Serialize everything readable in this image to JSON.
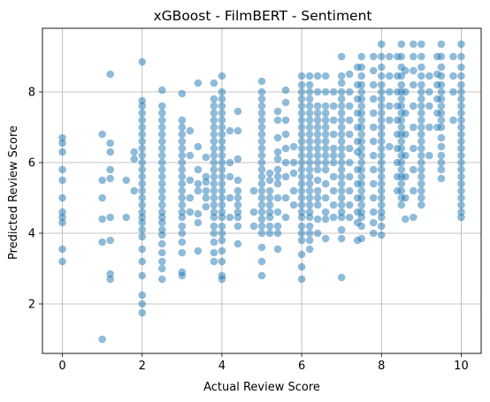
{
  "chart_data": {
    "type": "scatter",
    "title": "xGBoost - FilmBERT - Sentiment",
    "xlabel": "Actual Review Score",
    "ylabel": "Predicted Review Score",
    "xlim": [
      -0.5,
      10.5
    ],
    "ylim": [
      0.6,
      9.8
    ],
    "xticks": [
      "0",
      "2",
      "4",
      "6",
      "8",
      "10"
    ],
    "yticks": [
      "2",
      "4",
      "6",
      "8"
    ],
    "grid": true,
    "point_color": "#1f77b4",
    "point_alpha": 0.5,
    "columns": [
      {
        "x": 0,
        "ys": [
          3.2,
          3.55,
          4.3,
          4.45,
          4.6,
          5.0,
          5.5,
          5.8,
          6.3,
          6.55,
          6.7
        ]
      },
      {
        "x": 1.0,
        "ys": [
          1.0,
          3.75,
          4.4,
          5.0,
          5.5,
          6.8
        ]
      },
      {
        "x": 1.2,
        "ys": [
          2.7,
          2.85,
          3.8,
          4.45,
          5.55,
          5.8,
          6.3,
          6.55,
          8.5
        ]
      },
      {
        "x": 1.6,
        "ys": [
          4.45,
          5.5
        ]
      },
      {
        "x": 1.8,
        "ys": [
          5.2,
          6.1,
          6.3
        ]
      },
      {
        "x": 2.0,
        "ys": [
          1.75,
          2.0,
          2.25,
          2.8,
          3.2,
          3.55,
          3.9,
          4.1,
          4.3,
          4.45,
          4.6,
          4.8,
          5.0,
          5.2,
          5.4,
          5.6,
          5.8,
          6.0,
          6.2,
          6.4,
          6.6,
          6.8,
          7.0,
          7.2,
          7.4,
          7.6,
          7.75,
          8.85
        ]
      },
      {
        "x": 2.5,
        "ys": [
          2.7,
          3.0,
          3.2,
          3.45,
          3.7,
          3.95,
          4.1,
          4.3,
          4.45,
          4.6,
          4.8,
          5.0,
          5.2,
          5.4,
          5.6,
          5.8,
          6.0,
          6.2,
          6.4,
          6.6,
          6.8,
          7.0,
          7.2,
          7.4,
          7.6,
          8.05
        ]
      },
      {
        "x": 3.0,
        "ys": [
          2.8,
          2.9,
          3.45,
          3.75,
          4.0,
          4.2,
          4.45,
          4.6,
          4.8,
          5.0,
          5.2,
          5.4,
          5.6,
          5.8,
          6.0,
          6.2,
          6.4,
          6.6,
          6.8,
          7.0,
          7.2,
          7.95
        ]
      },
      {
        "x": 3.2,
        "ys": [
          4.6,
          5.0,
          5.5,
          6.2,
          6.9
        ]
      },
      {
        "x": 3.4,
        "ys": [
          3.5,
          4.3,
          4.55,
          5.2,
          5.4,
          5.8,
          6.45,
          8.25
        ]
      },
      {
        "x": 3.6,
        "ys": [
          4.75,
          5.0,
          5.2,
          5.45,
          5.6,
          6.15
        ]
      },
      {
        "x": 3.8,
        "ys": [
          3.2,
          3.45,
          3.75,
          4.0,
          4.2,
          4.45,
          4.6,
          4.8,
          5.0,
          5.2,
          5.4,
          5.6,
          5.8,
          6.0,
          6.2,
          6.4,
          6.6,
          6.8,
          7.0,
          7.2,
          7.4,
          7.6,
          7.8,
          8.25
        ]
      },
      {
        "x": 4.0,
        "ys": [
          2.7,
          2.8,
          3.2,
          3.5,
          3.8,
          4.0,
          4.2,
          4.45,
          4.6,
          4.8,
          5.0,
          5.2,
          5.4,
          5.6,
          5.8,
          6.0,
          6.2,
          6.4,
          6.6,
          6.8,
          7.0,
          7.2,
          7.4,
          7.6,
          7.8,
          8.0,
          8.45
        ]
      },
      {
        "x": 4.2,
        "ys": [
          4.45,
          5.0,
          5.6,
          6.0,
          6.9
        ]
      },
      {
        "x": 4.4,
        "ys": [
          3.7,
          4.2,
          4.45,
          4.6,
          4.8,
          5.0,
          5.2,
          5.5,
          6.1,
          6.9,
          7.45
        ]
      },
      {
        "x": 4.8,
        "ys": [
          4.2,
          4.6,
          5.2
        ]
      },
      {
        "x": 5.0,
        "ys": [
          2.8,
          3.2,
          3.6,
          4.0,
          4.2,
          4.4,
          4.6,
          4.8,
          5.0,
          5.2,
          5.4,
          5.6,
          5.8,
          6.0,
          6.2,
          6.4,
          6.6,
          6.8,
          7.0,
          7.2,
          7.4,
          7.6,
          7.8,
          8.0,
          8.3
        ]
      },
      {
        "x": 5.2,
        "ys": [
          4.0,
          4.2,
          4.45,
          4.6,
          4.8,
          5.0,
          5.2,
          5.5,
          5.7
        ]
      },
      {
        "x": 5.4,
        "ys": [
          3.55,
          4.0,
          4.2,
          4.6,
          5.0,
          5.4,
          5.6,
          5.8,
          6.1,
          6.3,
          6.7,
          7.2,
          7.45
        ]
      },
      {
        "x": 5.6,
        "ys": [
          4.45,
          5.0,
          5.6,
          6.0,
          6.4,
          6.8,
          7.2,
          7.7,
          8.05
        ]
      },
      {
        "x": 5.8,
        "ys": [
          4.8,
          5.2,
          5.7,
          6.0,
          6.45
        ]
      },
      {
        "x": 6.0,
        "ys": [
          2.7,
          3.05,
          3.4,
          3.8,
          4.0,
          4.2,
          4.45,
          4.6,
          4.8,
          5.0,
          5.2,
          5.4,
          5.6,
          5.8,
          6.0,
          6.2,
          6.4,
          6.6,
          6.8,
          7.0,
          7.2,
          7.4,
          7.6,
          7.8,
          8.0,
          8.2,
          8.45
        ]
      },
      {
        "x": 6.2,
        "ys": [
          3.55,
          3.8,
          4.0,
          4.2,
          4.45,
          4.6,
          4.8,
          5.0,
          5.2,
          5.4,
          5.6,
          5.8,
          6.0,
          6.2,
          6.4,
          6.6,
          6.8,
          7.0,
          7.2,
          7.4,
          7.6,
          7.8,
          8.0,
          8.2,
          8.45
        ]
      },
      {
        "x": 6.4,
        "ys": [
          4.0,
          4.4,
          4.8,
          5.0,
          5.2,
          5.5,
          5.8,
          6.0,
          6.2,
          6.4,
          6.6,
          6.8,
          7.0,
          7.2,
          7.4,
          7.6,
          8.0,
          8.45
        ]
      },
      {
        "x": 6.6,
        "ys": [
          3.85,
          4.4,
          4.6,
          5.0,
          5.4,
          5.8,
          6.0,
          6.2,
          6.4,
          6.6,
          6.8,
          7.0,
          7.2,
          7.4,
          7.6,
          8.0,
          8.45
        ]
      },
      {
        "x": 6.8,
        "ys": [
          4.45,
          4.8,
          5.2,
          5.6,
          6.0,
          6.2,
          6.4,
          6.8,
          7.2,
          7.6,
          8.0
        ]
      },
      {
        "x": 7.0,
        "ys": [
          2.75,
          3.85,
          4.1,
          4.45,
          4.6,
          4.8,
          5.0,
          5.2,
          5.4,
          5.6,
          5.8,
          6.0,
          6.2,
          6.4,
          6.6,
          6.8,
          7.0,
          7.2,
          7.4,
          7.6,
          7.8,
          8.0,
          8.25,
          8.45,
          9.0
        ]
      },
      {
        "x": 7.2,
        "ys": [
          4.45,
          4.8,
          5.2,
          5.6,
          6.0,
          6.4,
          6.8,
          7.2,
          7.6,
          8.0,
          8.5
        ]
      },
      {
        "x": 7.4,
        "ys": [
          3.8,
          4.3,
          4.6,
          5.0,
          5.4,
          5.8,
          6.3,
          6.6,
          7.0,
          7.4,
          7.8,
          8.2,
          8.7
        ]
      },
      {
        "x": 7.5,
        "ys": [
          3.85,
          4.2,
          4.45,
          4.6,
          4.8,
          5.0,
          5.2,
          5.4,
          5.6,
          5.8,
          6.0,
          6.2,
          6.4,
          6.6,
          6.8,
          7.0,
          7.2,
          7.4,
          7.6,
          7.8,
          8.0,
          8.2,
          8.45,
          8.7,
          9.0
        ]
      },
      {
        "x": 7.8,
        "ys": [
          4.0,
          4.3,
          4.6,
          5.0,
          5.4,
          5.8,
          6.2,
          6.6,
          7.0,
          7.4,
          7.8,
          8.2,
          8.6,
          9.0
        ]
      },
      {
        "x": 8.0,
        "ys": [
          3.95,
          4.2,
          4.45,
          4.6,
          4.8,
          5.0,
          5.2,
          5.4,
          5.6,
          5.8,
          6.0,
          6.2,
          6.4,
          6.6,
          6.8,
          7.0,
          7.2,
          7.4,
          7.6,
          7.8,
          8.0,
          8.2,
          8.45,
          8.7,
          9.0,
          9.35
        ]
      },
      {
        "x": 8.2,
        "ys": [
          6.45,
          7.2,
          7.6,
          8.0,
          8.45,
          9.0
        ]
      },
      {
        "x": 8.4,
        "ys": [
          5.2,
          5.6,
          6.0,
          6.4,
          6.8,
          7.2,
          7.6,
          8.0,
          8.45,
          9.0
        ]
      },
      {
        "x": 8.5,
        "ys": [
          4.8,
          5.0,
          5.2,
          5.4,
          5.6,
          5.8,
          6.0,
          6.2,
          6.4,
          6.6,
          6.8,
          7.0,
          7.2,
          7.4,
          7.6,
          7.8,
          8.0,
          8.2,
          8.45,
          8.7,
          9.0,
          9.35
        ]
      },
      {
        "x": 8.6,
        "ys": [
          4.4,
          5.0,
          5.6,
          6.2,
          6.8,
          7.4,
          8.0,
          8.6
        ]
      },
      {
        "x": 8.8,
        "ys": [
          4.45,
          5.2,
          5.8,
          6.4,
          7.0,
          7.6,
          8.2,
          8.6,
          9.0,
          9.35
        ]
      },
      {
        "x": 9.0,
        "ys": [
          4.8,
          5.0,
          5.2,
          5.4,
          5.6,
          5.8,
          6.0,
          6.2,
          6.4,
          6.6,
          6.8,
          7.0,
          7.2,
          7.4,
          7.6,
          7.8,
          8.0,
          8.2,
          8.45,
          8.7,
          9.0,
          9.35
        ]
      },
      {
        "x": 9.2,
        "ys": [
          6.2,
          7.0,
          7.6,
          8.0,
          8.45
        ]
      },
      {
        "x": 9.4,
        "ys": [
          7.0,
          7.4,
          7.8,
          8.2,
          8.5,
          9.0
        ]
      },
      {
        "x": 9.5,
        "ys": [
          5.55,
          5.8,
          6.0,
          6.2,
          6.45,
          6.7,
          7.0,
          7.2,
          7.4,
          7.6,
          7.8,
          8.0,
          8.2,
          8.45,
          8.7,
          9.0,
          9.35
        ]
      },
      {
        "x": 9.8,
        "ys": [
          7.2,
          8.0,
          8.45,
          9.0
        ]
      },
      {
        "x": 10.0,
        "ys": [
          4.45,
          4.6,
          4.8,
          5.0,
          5.2,
          5.4,
          5.6,
          5.8,
          6.0,
          6.2,
          6.4,
          6.6,
          6.8,
          7.0,
          7.2,
          7.4,
          7.6,
          7.8,
          8.0,
          8.2,
          8.45,
          8.7,
          9.0,
          9.35
        ]
      }
    ]
  }
}
